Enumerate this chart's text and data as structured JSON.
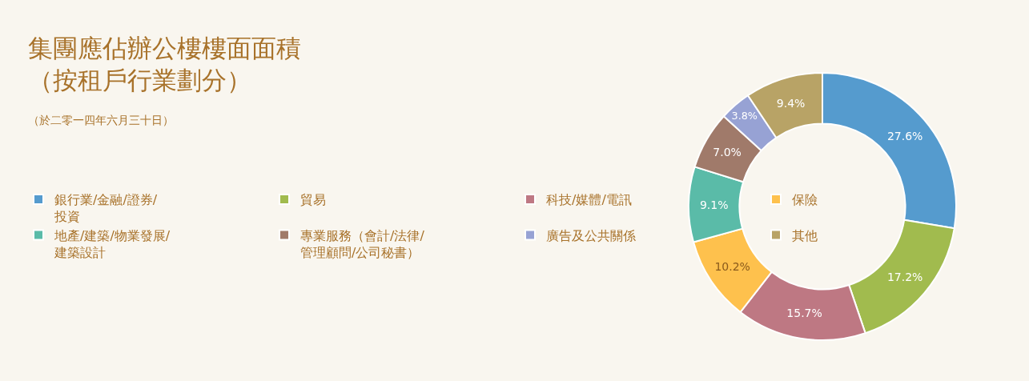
{
  "chart_data": {
    "type": "donut",
    "title": "集團應佔辦公樓樓面面積（按租戶行業劃分）",
    "subtitle": "（於二零一四年六月三十日）",
    "categories": [
      "銀行業/金融/證券/投資",
      "貿易",
      "科技/媒體/電訊",
      "保險",
      "地產/建築/物業發展/建築設計",
      "專業服務（會計/法律/管理顧問/公司秘書）",
      "廣告及公共關係",
      "其他"
    ],
    "values": [
      27.6,
      17.2,
      15.7,
      10.2,
      9.1,
      7.0,
      3.8,
      9.4
    ],
    "colors": [
      "#559bce",
      "#a1bb4e",
      "#be7883",
      "#fec14d",
      "#5abba8",
      "#a07a6a",
      "#97a2d4",
      "#b8a366"
    ],
    "value_labels": [
      "27.6%",
      "17.2%",
      "15.7%",
      "10.2%",
      "9.1%",
      "7.0%",
      "3.8%",
      "9.4%"
    ],
    "legend": "left"
  }
}
